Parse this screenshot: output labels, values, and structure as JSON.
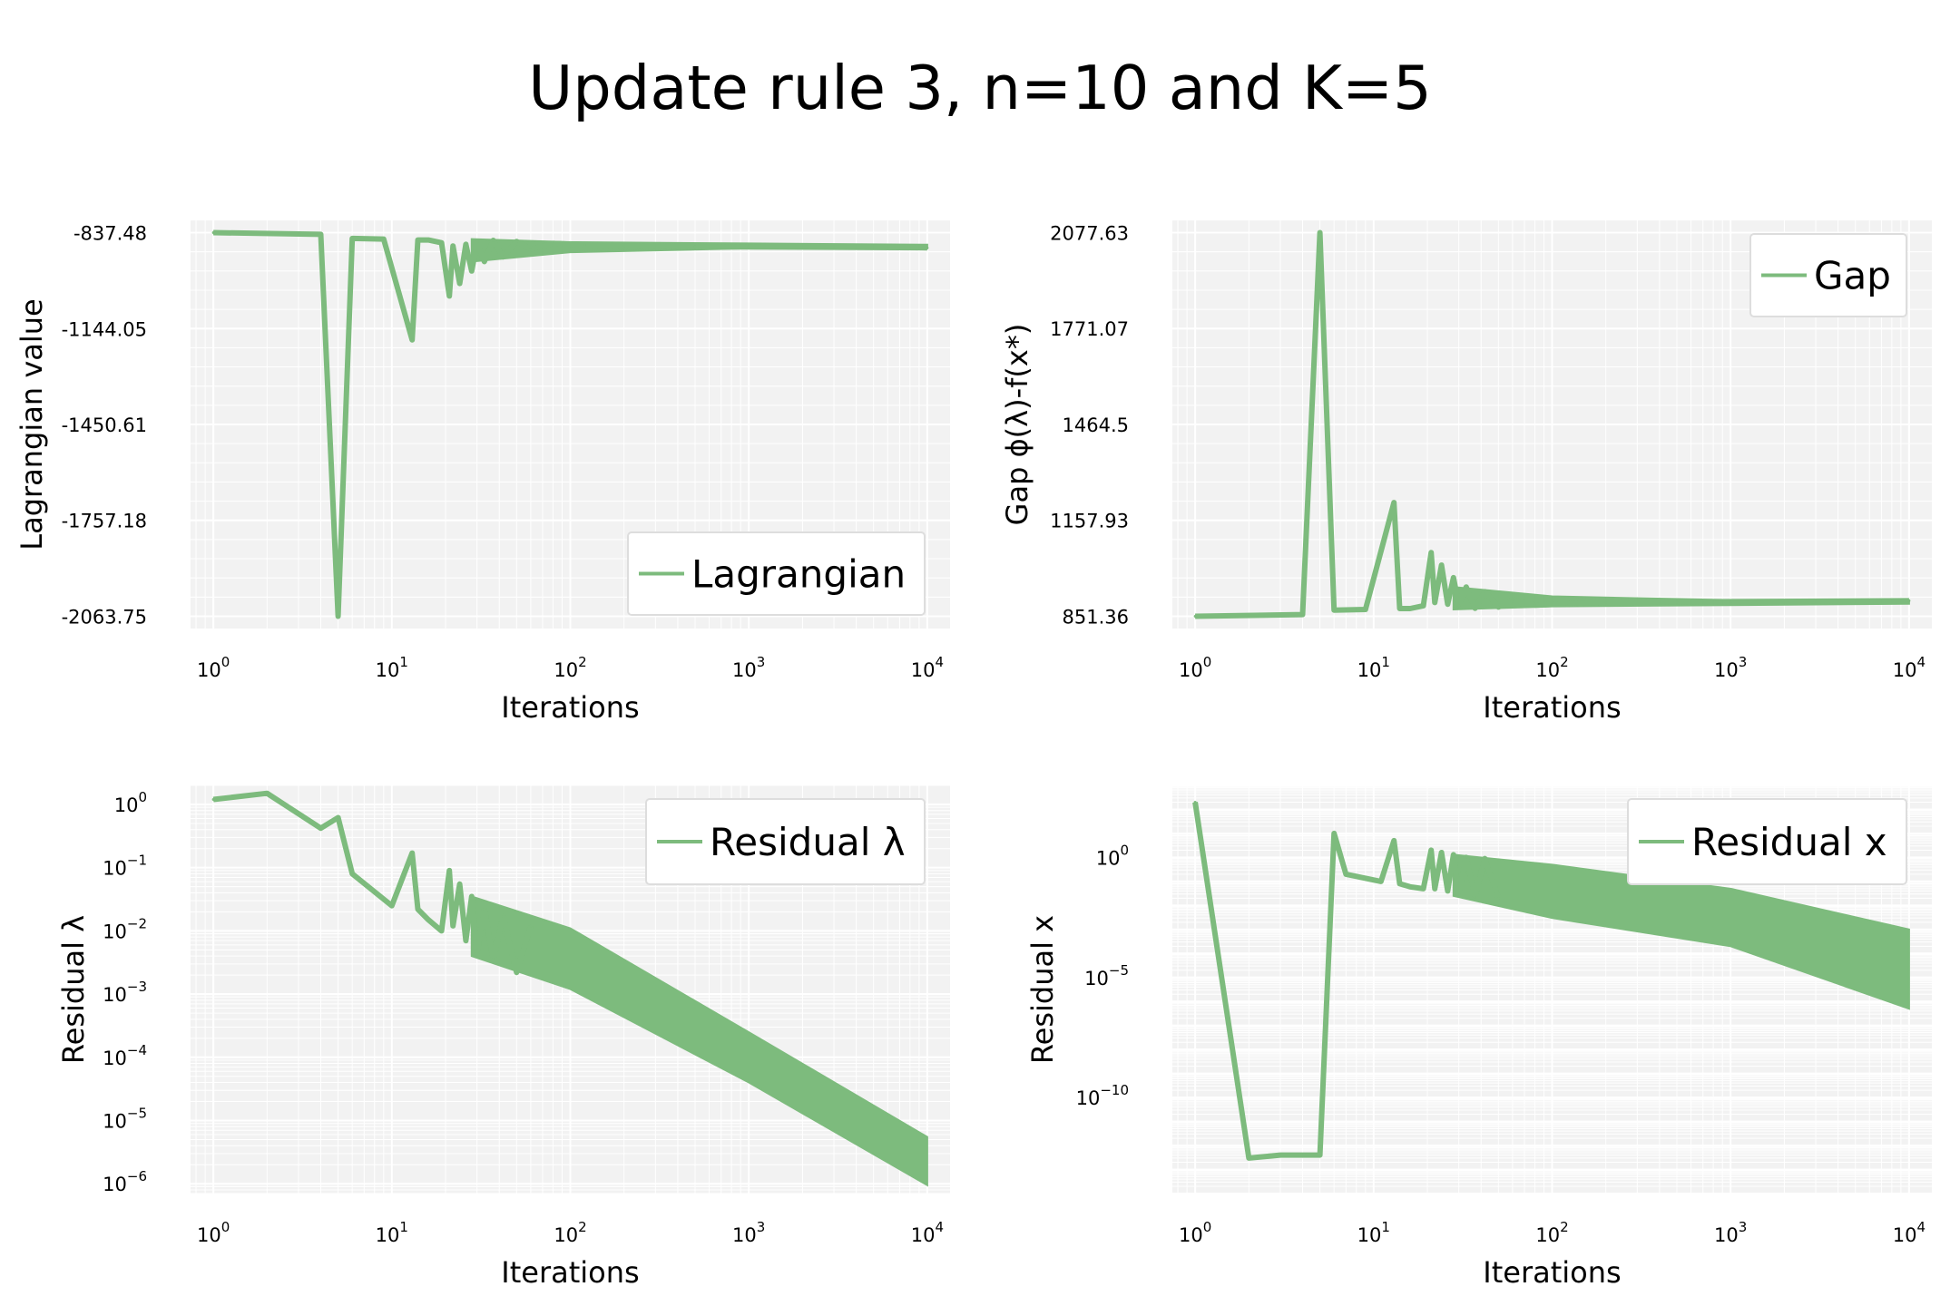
{
  "figure": {
    "title": "Update rule 3, n=10 and K=5",
    "line_color": "#7dbb7d",
    "panel_bg": "#f2f2f2",
    "grid_color": "#ffffff"
  },
  "chart_data": [
    {
      "type": "line",
      "xlabel": "Iterations",
      "ylabel": "Lagrangian value",
      "xscale": "log",
      "xlim": [
        1,
        10000
      ],
      "xticks": [
        {
          "v": 1,
          "e": "0"
        },
        {
          "v": 10,
          "e": "1"
        },
        {
          "v": 100,
          "e": "2"
        },
        {
          "v": 1000,
          "e": "3"
        },
        {
          "v": 10000,
          "e": "4"
        }
      ],
      "yscale": "linear",
      "ylim": [
        -2063.75,
        -837.48
      ],
      "yticks": [
        {
          "v": -837.48,
          "t": "-837.48"
        },
        {
          "v": -1144.05,
          "t": "-1144.05"
        },
        {
          "v": -1450.61,
          "t": "-1450.61"
        },
        {
          "v": -1757.18,
          "t": "-1757.18"
        },
        {
          "v": -2063.75,
          "t": "-2063.75"
        }
      ],
      "legend": {
        "label": "Lagrangian",
        "position": "lower-right"
      },
      "series": [
        {
          "name": "Lagrangian",
          "x": [
            1,
            4,
            5,
            6,
            9,
            13,
            14,
            16,
            19,
            21,
            22,
            24,
            26,
            28,
            30,
            33,
            37,
            42,
            50,
            60,
            80,
            120,
            200,
            500,
            1000,
            10000
          ],
          "y": [
            -837.5,
            -843,
            -2063.75,
            -856,
            -858,
            -1180,
            -861,
            -861,
            -870,
            -1040,
            -880,
            -1000,
            -875,
            -960,
            -870,
            -930,
            -862,
            -915,
            -866,
            -890,
            -872,
            -876,
            -880,
            -882,
            -883,
            -886
          ]
        }
      ],
      "band": {
        "x": [
          28,
          100,
          1000,
          10000
        ],
        "upper": [
          -858,
          -868,
          -872,
          -876
        ],
        "lower": [
          -930,
          -900,
          -888,
          -888
        ]
      }
    },
    {
      "type": "line",
      "xlabel": "Iterations",
      "ylabel": "Gap ϕ(λ)-f(x*)",
      "xscale": "log",
      "xlim": [
        1,
        10000
      ],
      "xticks": [
        {
          "v": 1,
          "e": "0"
        },
        {
          "v": 10,
          "e": "1"
        },
        {
          "v": 100,
          "e": "2"
        },
        {
          "v": 1000,
          "e": "3"
        },
        {
          "v": 10000,
          "e": "4"
        }
      ],
      "yscale": "linear",
      "ylim": [
        851.36,
        2077.63
      ],
      "yticks": [
        {
          "v": 2077.63,
          "t": "2077.63"
        },
        {
          "v": 1771.07,
          "t": "1771.07"
        },
        {
          "v": 1464.5,
          "t": "1464.5"
        },
        {
          "v": 1157.93,
          "t": "1157.93"
        },
        {
          "v": 851.36,
          "t": "851.36"
        }
      ],
      "legend": {
        "label": "Gap",
        "position": "upper-right"
      },
      "series": [
        {
          "name": "Gap",
          "x": [
            1,
            4,
            5,
            6,
            9,
            13,
            14,
            16,
            19,
            21,
            22,
            24,
            26,
            28,
            30,
            33,
            37,
            42,
            50,
            60,
            80,
            120,
            200,
            500,
            1000,
            10000
          ],
          "y": [
            851.36,
            857,
            2077.63,
            871,
            873,
            1215,
            876,
            876,
            885,
            1055,
            895,
            1015,
            890,
            975,
            885,
            945,
            877,
            930,
            881,
            905,
            887,
            891,
            895,
            897,
            898,
            901
          ]
        }
      ],
      "band": {
        "x": [
          28,
          100,
          1000,
          10000
        ],
        "upper": [
          945,
          915,
          903,
          903
        ],
        "lower": [
          873,
          883,
          887,
          891
        ]
      }
    },
    {
      "type": "line",
      "xlabel": "Iterations",
      "ylabel": "Residual λ",
      "xscale": "log",
      "xlim": [
        1,
        10000
      ],
      "xticks": [
        {
          "v": 1,
          "e": "0"
        },
        {
          "v": 10,
          "e": "1"
        },
        {
          "v": 100,
          "e": "2"
        },
        {
          "v": 1000,
          "e": "3"
        },
        {
          "v": 10000,
          "e": "4"
        }
      ],
      "yscale": "log",
      "ylim": [
        7e-07,
        2
      ],
      "yticks": [
        {
          "v": 1,
          "e": "0"
        },
        {
          "v": 0.1,
          "e": "−1"
        },
        {
          "v": 0.01,
          "e": "−2"
        },
        {
          "v": 0.001,
          "e": "−3"
        },
        {
          "v": 0.0001,
          "e": "−4"
        },
        {
          "v": 1e-05,
          "e": "−5"
        },
        {
          "v": 1e-06,
          "e": "−6"
        }
      ],
      "legend": {
        "label": "Residual λ",
        "position": "upper-right"
      },
      "series": [
        {
          "name": "Residual λ",
          "x": [
            1,
            2,
            4,
            5,
            6,
            10,
            13,
            14,
            16,
            19,
            21,
            22,
            24,
            26,
            28,
            30,
            33,
            37,
            42,
            50,
            60
          ],
          "y": [
            1.2,
            1.5,
            0.42,
            0.62,
            0.08,
            0.025,
            0.17,
            0.022,
            0.015,
            0.01,
            0.09,
            0.012,
            0.055,
            0.007,
            0.035,
            0.0045,
            0.022,
            0.0035,
            0.017,
            0.0022,
            0.012
          ]
        }
      ],
      "band": {
        "x": [
          28,
          100,
          1000,
          10000
        ],
        "upper": [
          0.035,
          0.011,
          0.00025,
          5.5e-06
        ],
        "lower": [
          0.004,
          0.0012,
          4e-05,
          9.5e-07
        ]
      }
    },
    {
      "type": "line",
      "xlabel": "Iterations",
      "ylabel": "Residual x",
      "xscale": "log",
      "xlim": [
        1,
        10000
      ],
      "xticks": [
        {
          "v": 1,
          "e": "0"
        },
        {
          "v": 10,
          "e": "1"
        },
        {
          "v": 100,
          "e": "2"
        },
        {
          "v": 1000,
          "e": "3"
        },
        {
          "v": 10000,
          "e": "4"
        }
      ],
      "yscale": "log",
      "ylim": [
        1e-14,
        1000
      ],
      "yticks": [
        {
          "v": 1,
          "e": "0"
        },
        {
          "v": 1e-05,
          "e": "−5"
        },
        {
          "v": 1e-10,
          "e": "−10"
        }
      ],
      "legend": {
        "label": "Residual x",
        "position": "upper-right"
      },
      "series": [
        {
          "name": "Residual x",
          "x": [
            1,
            2,
            3,
            5,
            6,
            7,
            11,
            13,
            14,
            16,
            19,
            21,
            22,
            24,
            26,
            28,
            30,
            33,
            37,
            42,
            50
          ],
          "y": [
            200,
            3e-13,
            4e-13,
            4e-13,
            10,
            0.2,
            0.1,
            5,
            0.08,
            0.06,
            0.05,
            2,
            0.05,
            1.6,
            0.04,
            1.3,
            0.03,
            1,
            0.025,
            0.9,
            0.02
          ]
        }
      ],
      "band": {
        "x": [
          28,
          100,
          1000,
          10000
        ],
        "upper": [
          1.3,
          0.5,
          0.05,
          0.001
        ],
        "lower": [
          0.025,
          0.003,
          0.0002,
          5e-07
        ]
      }
    }
  ]
}
